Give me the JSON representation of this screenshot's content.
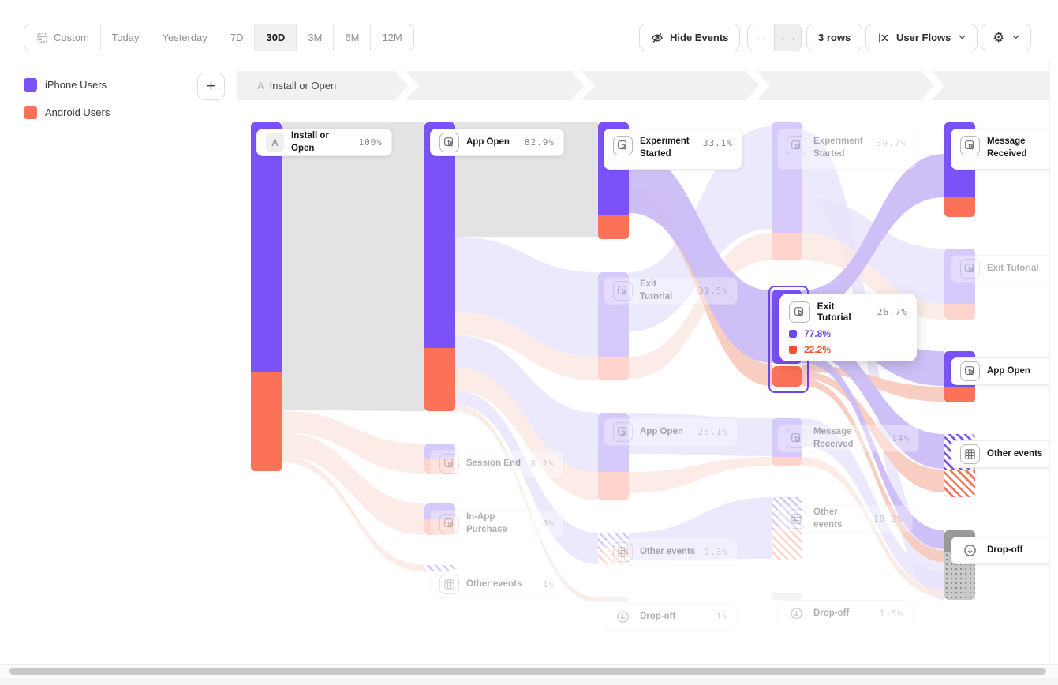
{
  "colors": {
    "iphone": "#7B52F8",
    "android": "#FC7258",
    "highlight_border": "#6E46F0",
    "flow_gray": "#E3E3E3",
    "flow_purple": "#CBBDF7",
    "flow_pink": "#F8CBC0",
    "flow_purple_faded": "#E9E3FB",
    "flow_pink_faded": "#FBE7E1"
  },
  "toolbar": {
    "date_ranges": [
      "Custom",
      "Today",
      "Yesterday",
      "7D",
      "30D",
      "3M",
      "6M",
      "12M"
    ],
    "active_range": "30D",
    "hide_events": "Hide Events",
    "collapse_glyph": "→←",
    "expand_glyph": "←→",
    "rows": "3 rows",
    "view": "User Flows",
    "gear_glyph": "⚙"
  },
  "legend": {
    "items": [
      {
        "label": "iPhone Users",
        "color": "#7B52F8"
      },
      {
        "label": "Android Users",
        "color": "#FC7258"
      }
    ]
  },
  "breadcrumb": {
    "add_button": "+",
    "step_badge": "A",
    "step_label": "Install or Open"
  },
  "tooltip": {
    "label": "Exit Tutorial",
    "pct": "26.7%",
    "rows": [
      {
        "value": "77.8%",
        "color": "#6E46F0"
      },
      {
        "value": "22.2%",
        "color": "#F4502F"
      }
    ]
  },
  "chart_data": {
    "type": "sankey",
    "unit": "percent of users reaching each event per step",
    "legend": [
      "iPhone Users",
      "Android Users"
    ],
    "columns": [
      {
        "step": 1,
        "nodes": [
          {
            "label": "Install or Open",
            "pct": "100%",
            "badge": "A",
            "state": "active"
          }
        ]
      },
      {
        "step": 2,
        "nodes": [
          {
            "label": "App Open",
            "pct": "82.9%",
            "state": "active"
          },
          {
            "label": "Session End",
            "pct": "8.1%",
            "state": "faded"
          },
          {
            "label": "In-App Purchase",
            "pct": "8%",
            "state": "faded"
          },
          {
            "label": "Other events",
            "pct": "1%",
            "state": "faded"
          }
        ]
      },
      {
        "step": 3,
        "nodes": [
          {
            "label": "Experiment Started",
            "pct": "33.1%",
            "state": "active"
          },
          {
            "label": "Exit Tutorial",
            "pct": "31.5%",
            "state": "faded"
          },
          {
            "label": "App Open",
            "pct": "25.1%",
            "state": "faded"
          },
          {
            "label": "Other events",
            "pct": "9.3%",
            "state": "faded"
          },
          {
            "label": "Drop-off",
            "pct": "1%",
            "state": "faded"
          }
        ]
      },
      {
        "step": 4,
        "nodes": [
          {
            "label": "Experiment Started",
            "pct": "39.7%",
            "state": "faded"
          },
          {
            "label": "Exit Tutorial",
            "pct": "26.7%",
            "state": "hovered",
            "breakdown": {
              "iphone": "77.8%",
              "android": "22.2%"
            }
          },
          {
            "label": "Message Received",
            "pct": "14%",
            "state": "faded"
          },
          {
            "label": "Other events",
            "pct": "18.2%",
            "state": "faded"
          },
          {
            "label": "Drop-off",
            "pct": "1.5%",
            "state": "faded"
          }
        ]
      },
      {
        "step": 5,
        "nodes": [
          {
            "label": "Message Received",
            "state": "active"
          },
          {
            "label": "Exit Tutorial",
            "state": "faded"
          },
          {
            "label": "App Open",
            "state": "active"
          },
          {
            "label": "Other events",
            "state": "active"
          },
          {
            "label": "Drop-off",
            "state": "active"
          }
        ]
      }
    ]
  }
}
